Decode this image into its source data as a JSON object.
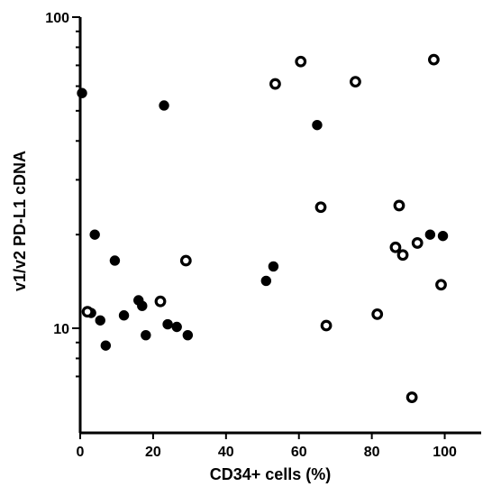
{
  "chart_data": {
    "type": "scatter",
    "title": "",
    "xlabel": "CD34+ cells (%)",
    "ylabel": "v1/v2 PD-L1 cDNA",
    "xlim": [
      0,
      110
    ],
    "ylim": [
      6,
      100
    ],
    "yscale": "log",
    "x_ticks": [
      0,
      20,
      40,
      60,
      80,
      100
    ],
    "x_tick_labels": [
      "0",
      "20",
      "40",
      "60",
      "80",
      "100"
    ],
    "y_tick_labels_major": [
      "10",
      "100"
    ],
    "y_ticks_major": [
      10,
      100
    ],
    "y_ticks_minor": [
      7,
      8,
      9,
      20,
      30,
      40,
      50,
      60,
      70,
      80,
      90
    ],
    "grid": false,
    "series": [
      {
        "marker": "filled-circle",
        "color": "#000000",
        "points": [
          [
            0.5,
            57
          ],
          [
            23,
            52
          ],
          [
            65,
            45
          ],
          [
            4,
            20
          ],
          [
            9.5,
            16.5
          ],
          [
            53,
            15.8
          ],
          [
            51,
            14.2
          ],
          [
            16,
            12.3
          ],
          [
            17,
            11.8
          ],
          [
            12,
            11
          ],
          [
            5.5,
            10.6
          ],
          [
            3,
            11.2
          ],
          [
            24,
            10.3
          ],
          [
            26.5,
            10.1
          ],
          [
            18,
            9.5
          ],
          [
            29.5,
            9.5
          ],
          [
            7,
            8.8
          ],
          [
            96,
            20
          ],
          [
            99.5,
            19.8
          ]
        ]
      },
      {
        "marker": "open-circle",
        "color": "#000000",
        "points": [
          [
            60.5,
            72
          ],
          [
            97,
            73
          ],
          [
            75.5,
            62
          ],
          [
            53.5,
            61
          ],
          [
            66,
            24.5
          ],
          [
            87.5,
            24.8
          ],
          [
            29,
            16.5
          ],
          [
            86.5,
            18.2
          ],
          [
            92.5,
            18.8
          ],
          [
            88.5,
            17.2
          ],
          [
            99,
            13.8
          ],
          [
            22,
            12.2
          ],
          [
            2,
            11.3
          ],
          [
            81.5,
            11.1
          ],
          [
            67.5,
            10.2
          ],
          [
            91,
            6
          ]
        ]
      }
    ]
  }
}
